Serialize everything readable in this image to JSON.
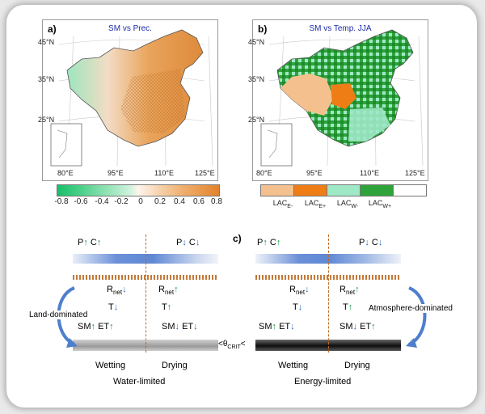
{
  "panel_a": {
    "letter": "a)",
    "title": "SM vs Prec.",
    "lat_ticks": [
      "45°N",
      "35°N",
      "25°N"
    ],
    "lon_ticks": [
      "80°E",
      "95°E",
      "110°E",
      "125°E"
    ],
    "colorbar_ticks": [
      "-0.8",
      "-0.6",
      "-0.4",
      "-0.2",
      "0",
      "0.2",
      "0.4",
      "0.6",
      "0.8"
    ],
    "colors": {
      "neg": "#2ec27a",
      "pos": "#e07a1f"
    }
  },
  "panel_b": {
    "letter": "b)",
    "title": "SM vs Temp. JJA",
    "lat_ticks": [
      "45°N",
      "35°N",
      "25°N"
    ],
    "lon_ticks": [
      "80°E",
      "95°E",
      "110°E",
      "125°E"
    ],
    "legend": [
      {
        "base": "LAC",
        "sub": "E-",
        "color": "#f4c08d"
      },
      {
        "base": "LAC",
        "sub": "E+",
        "color": "#ef7d16"
      },
      {
        "base": "LAC",
        "sub": "W-",
        "color": "#9fe8c6"
      },
      {
        "base": "LAC",
        "sub": "W+",
        "color": "#2da33a"
      },
      {
        "base": "",
        "sub": "",
        "color": "#ffffff"
      }
    ]
  },
  "panel_c": {
    "letter": "c)",
    "threshold": "θ",
    "threshold_sub": "CRIT",
    "left": {
      "regime": "Water-limited",
      "arrow_label": "Land-dominated",
      "wetting": "Wetting",
      "drying": "Drying"
    },
    "right": {
      "regime": "Energy-limited",
      "arrow_label": "Atmosphere-dominated",
      "wetting": "Wetting",
      "drying": "Drying"
    },
    "symbols": {
      "P": "P",
      "C": "C",
      "R": "R",
      "R_sub": "net",
      "T": "T",
      "SM": "SM",
      "ET": "ET"
    },
    "colors": {
      "increase": "#1a9a4a",
      "decrease": "#2c6bb8",
      "cloud": "#5f88d4",
      "divider": "#c26a20"
    }
  }
}
